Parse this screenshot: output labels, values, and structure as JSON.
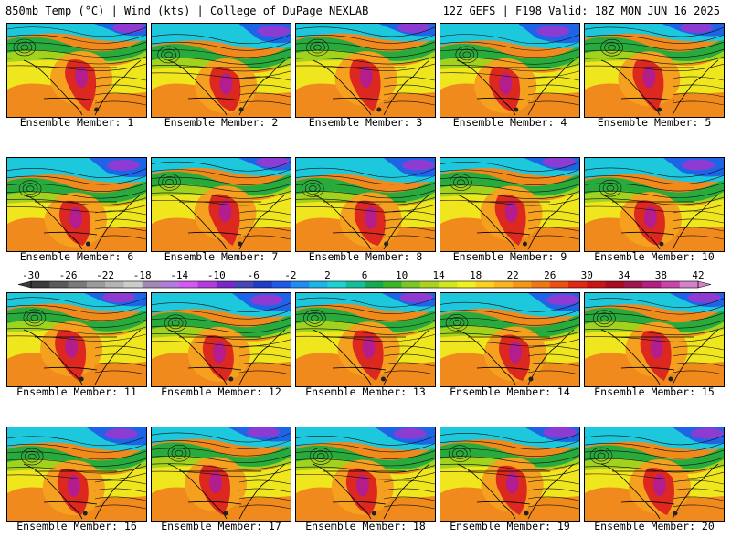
{
  "header": {
    "left_title": "850mb Temp (°C) | Wind (kts) | College of DuPage NEXLAB",
    "right_title": "12Z GEFS | F198 Valid: 18Z MON JUN 16 2025"
  },
  "caption_prefix": "Ensemble Member: ",
  "members": [
    {
      "id": 1,
      "label": "Ensemble Member: 1"
    },
    {
      "id": 2,
      "label": "Ensemble Member: 2"
    },
    {
      "id": 3,
      "label": "Ensemble Member: 3"
    },
    {
      "id": 4,
      "label": "Ensemble Member: 4"
    },
    {
      "id": 5,
      "label": "Ensemble Member: 5"
    },
    {
      "id": 6,
      "label": "Ensemble Member: 6"
    },
    {
      "id": 7,
      "label": "Ensemble Member: 7"
    },
    {
      "id": 8,
      "label": "Ensemble Member: 8"
    },
    {
      "id": 9,
      "label": "Ensemble Member: 9"
    },
    {
      "id": 10,
      "label": "Ensemble Member: 10"
    },
    {
      "id": 11,
      "label": "Ensemble Member: 11"
    },
    {
      "id": 12,
      "label": "Ensemble Member: 12"
    },
    {
      "id": 13,
      "label": "Ensemble Member: 13"
    },
    {
      "id": 14,
      "label": "Ensemble Member: 14"
    },
    {
      "id": 15,
      "label": "Ensemble Member: 15"
    },
    {
      "id": 16,
      "label": "Ensemble Member: 16"
    },
    {
      "id": 17,
      "label": "Ensemble Member: 17"
    },
    {
      "id": 18,
      "label": "Ensemble Member: 18"
    },
    {
      "id": 19,
      "label": "Ensemble Member: 19"
    },
    {
      "id": 20,
      "label": "Ensemble Member: 20"
    }
  ],
  "colorbar": {
    "unit": "°C",
    "min": -30,
    "max": 42,
    "step": 2,
    "tick_labels": [
      "-30",
      "-26",
      "-22",
      "-18",
      "-14",
      "-10",
      "-6",
      "-2",
      "2",
      "6",
      "10",
      "14",
      "18",
      "22",
      "26",
      "30",
      "34",
      "38",
      "42"
    ],
    "colors": [
      "#3a3a3a",
      "#5a5a5a",
      "#7a7a7a",
      "#9a9a9a",
      "#b4b4b4",
      "#cccccc",
      "#a08ab4",
      "#b47adc",
      "#d25af0",
      "#b43cdc",
      "#7828c8",
      "#4646b4",
      "#1e3cc8",
      "#1e5ae6",
      "#1e8cf0",
      "#1eb4e6",
      "#1ed2d2",
      "#14be9b",
      "#14aa50",
      "#3cb428",
      "#78c828",
      "#aad21e",
      "#d2e61e",
      "#f0f01e",
      "#fad21e",
      "#fab41e",
      "#f59614",
      "#f07814",
      "#eb5014",
      "#e12814",
      "#c81414",
      "#aa0a1e",
      "#a01450",
      "#b41e82",
      "#c846aa",
      "#d282c8"
    ]
  },
  "map_colors": {
    "cold_purple": "#8c3cd2",
    "cold_blue": "#1e64e6",
    "cyan": "#1ec8dc",
    "green": "#28aa3c",
    "yellow_green": "#a0d21e",
    "yellow": "#f0e61e",
    "orange": "#f5a01e",
    "hot_red": "#dc281e",
    "hottest": "#b41e8c",
    "ocean_warm": "#f08a1c"
  }
}
